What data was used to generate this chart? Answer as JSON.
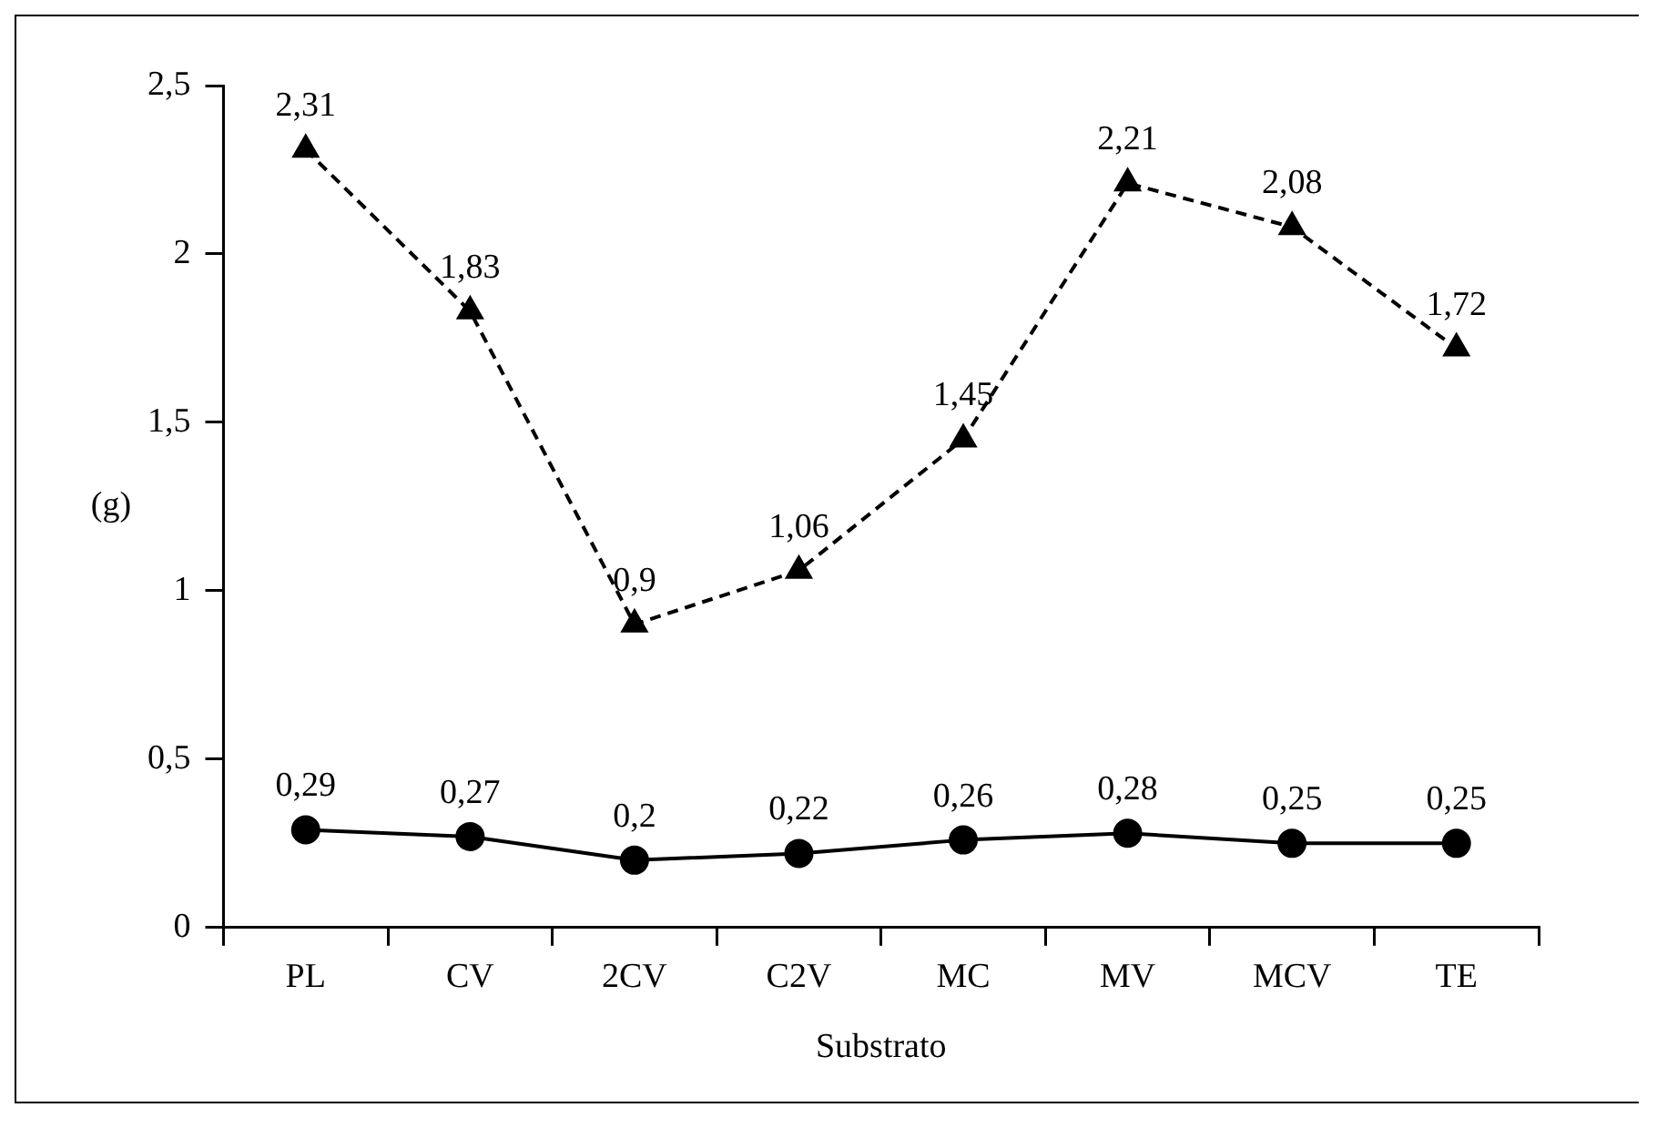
{
  "chart_data": {
    "type": "line",
    "xlabel": "Substrato",
    "ylabel": "(g)",
    "categories": [
      "PL",
      "CV",
      "2CV",
      "C2V",
      "MC",
      "MV",
      "MCV",
      "TE"
    ],
    "series": [
      {
        "color": "#000000",
        "marker": "triangle",
        "line_style": "dashed",
        "values": [
          2.31,
          1.83,
          0.9,
          1.06,
          1.45,
          2.21,
          2.08,
          1.72
        ],
        "value_labels": [
          "2,31",
          "1,83",
          "0,9",
          "1,06",
          "1,45",
          "2,21",
          "2,08",
          "1,72"
        ]
      },
      {
        "color": "#000000",
        "marker": "circle",
        "line_style": "solid",
        "values": [
          0.29,
          0.27,
          0.2,
          0.22,
          0.26,
          0.28,
          0.25,
          0.25
        ],
        "value_labels": [
          "0,29",
          "0,27",
          "0,2",
          "0,22",
          "0,26",
          "0,28",
          "0,25",
          "0,25"
        ]
      }
    ],
    "ylim": [
      0,
      2.5
    ],
    "yticks": [
      0,
      {
        "value": 0.5,
        "label": "0,5"
      },
      1,
      {
        "value": 1.5,
        "label": "1,5"
      },
      2,
      {
        "value": 2.5,
        "label": "2,5"
      }
    ],
    "grid": false,
    "legend": false
  }
}
